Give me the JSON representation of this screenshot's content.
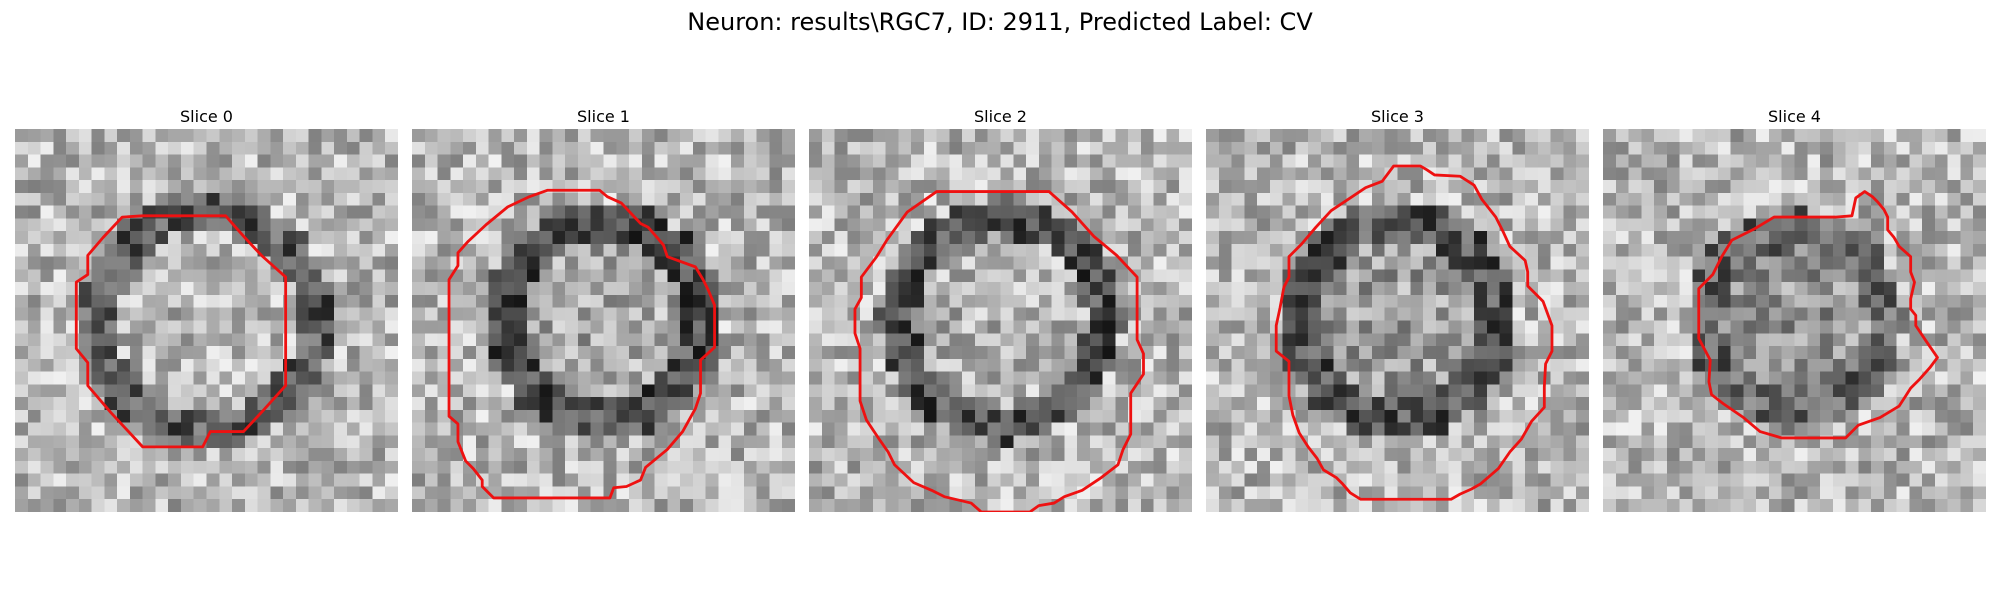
{
  "figure": {
    "title": "Neuron: results\\RGC7, ID: 2911, Predicted Label: CV",
    "outline_color": "#ee1111"
  },
  "slices": [
    {
      "label": "Slice 0",
      "seed": 11,
      "ring": 0.55,
      "center_shade": 0.72,
      "ring_shade": 0.35,
      "outline": [
        [
          10,
          6.8
        ],
        [
          16.5,
          6.8
        ],
        [
          17.2,
          7.6
        ],
        [
          18,
          8.5
        ],
        [
          19.3,
          9.9
        ],
        [
          21.2,
          11.6
        ],
        [
          21.2,
          20.1
        ],
        [
          19.3,
          22.2
        ],
        [
          17.9,
          23.7
        ],
        [
          15.3,
          23.7
        ],
        [
          14.7,
          24.9
        ],
        [
          10,
          24.9
        ],
        [
          7.5,
          22.2
        ],
        [
          5.7,
          20.1
        ],
        [
          5.7,
          18.3
        ],
        [
          4.8,
          17.2
        ],
        [
          4.8,
          12
        ],
        [
          5.7,
          11.4
        ],
        [
          5.7,
          9.9
        ],
        [
          6.9,
          8.5
        ],
        [
          8.4,
          6.9
        ]
      ]
    },
    {
      "label": "Slice 1",
      "seed": 23,
      "ring": 0.5,
      "center_shade": 0.66,
      "ring_shade": 0.3,
      "outline": [
        [
          10.6,
          4.8
        ],
        [
          14.7,
          4.8
        ],
        [
          15.3,
          5.3
        ],
        [
          16.4,
          5.8
        ],
        [
          17.9,
          7.4
        ],
        [
          18.5,
          7.7
        ],
        [
          19.2,
          8.5
        ],
        [
          19.7,
          9.1
        ],
        [
          20,
          10
        ],
        [
          22.2,
          10.8
        ],
        [
          22.8,
          11.8
        ],
        [
          23.2,
          12.6
        ],
        [
          23.7,
          13.8
        ],
        [
          23.7,
          17.1
        ],
        [
          22.6,
          18.1
        ],
        [
          22.6,
          20.7
        ],
        [
          22.2,
          21.9
        ],
        [
          21.2,
          23.7
        ],
        [
          20,
          25.1
        ],
        [
          18.3,
          26.5
        ],
        [
          17.9,
          27.5
        ],
        [
          16.8,
          28
        ],
        [
          15.8,
          28.1
        ],
        [
          15.5,
          28.9
        ],
        [
          13.8,
          28.9
        ],
        [
          12,
          28.9
        ],
        [
          6.4,
          28.9
        ],
        [
          5.5,
          28
        ],
        [
          5.5,
          27.5
        ],
        [
          4.8,
          26.6
        ],
        [
          4.2,
          26
        ],
        [
          3.6,
          24.5
        ],
        [
          3.6,
          23.1
        ],
        [
          2.9,
          22.5
        ],
        [
          2.9,
          11.8
        ],
        [
          3.6,
          10.7
        ],
        [
          3.6,
          9.7
        ],
        [
          4.4,
          8.8
        ],
        [
          5.8,
          7.5
        ],
        [
          7.5,
          6.1
        ],
        [
          9.2,
          5.3
        ]
      ]
    },
    {
      "label": "Slice 2",
      "seed": 37,
      "ring": 0.52,
      "center_shade": 0.7,
      "ring_shade": 0.3,
      "outline": [
        [
          10,
          4.9
        ],
        [
          18.8,
          4.9
        ],
        [
          20.6,
          6.5
        ],
        [
          22.3,
          8.4
        ],
        [
          24.1,
          9.9
        ],
        [
          25.7,
          11.6
        ],
        [
          25.7,
          16.5
        ],
        [
          26.2,
          17.6
        ],
        [
          26.2,
          19.2
        ],
        [
          25.2,
          20.7
        ],
        [
          25.2,
          23.9
        ],
        [
          24.6,
          25.1
        ],
        [
          24.2,
          26.3
        ],
        [
          22.9,
          27.3
        ],
        [
          21.4,
          28.3
        ],
        [
          20,
          28.8
        ],
        [
          19.2,
          29.3
        ],
        [
          18,
          29.5
        ],
        [
          17.3,
          30
        ],
        [
          13.5,
          30
        ],
        [
          12.7,
          29.3
        ],
        [
          10.6,
          28.8
        ],
        [
          9.6,
          28.3
        ],
        [
          8.2,
          27.7
        ],
        [
          6.7,
          26.3
        ],
        [
          6.2,
          25.3
        ],
        [
          5.5,
          24.3
        ],
        [
          4.5,
          22.8
        ],
        [
          4,
          21.3
        ],
        [
          4,
          17.2
        ],
        [
          3.6,
          16
        ],
        [
          3.6,
          14.1
        ],
        [
          4.1,
          13.2
        ],
        [
          4.1,
          11.6
        ],
        [
          5.3,
          10
        ],
        [
          6.1,
          8.7
        ],
        [
          7.7,
          6.5
        ]
      ]
    },
    {
      "label": "Slice 3",
      "seed": 53,
      "ring": 0.5,
      "center_shade": 0.62,
      "ring_shade": 0.32,
      "outline": [
        [
          14.7,
          2.9
        ],
        [
          16.8,
          2.9
        ],
        [
          17.3,
          3.2
        ],
        [
          17.9,
          3.6
        ],
        [
          19.9,
          3.7
        ],
        [
          21,
          4.4
        ],
        [
          21.6,
          5.5
        ],
        [
          22.7,
          6.9
        ],
        [
          23.3,
          8.1
        ],
        [
          23.8,
          9.2
        ],
        [
          25,
          10.3
        ],
        [
          25.2,
          11.2
        ],
        [
          25.2,
          12.3
        ],
        [
          26.4,
          13.5
        ],
        [
          27.1,
          15.4
        ],
        [
          27.1,
          16.3
        ],
        [
          27.1,
          17.4
        ],
        [
          26.6,
          18.4
        ],
        [
          26.5,
          20.2
        ],
        [
          26.5,
          21.8
        ],
        [
          25.5,
          22.9
        ],
        [
          24.7,
          24.3
        ],
        [
          23.8,
          25.3
        ],
        [
          22.9,
          26.6
        ],
        [
          21.5,
          27.8
        ],
        [
          20.8,
          28.2
        ],
        [
          19.9,
          28.6
        ],
        [
          19.2,
          29
        ],
        [
          12.1,
          29
        ],
        [
          11.3,
          28.5
        ],
        [
          10.7,
          27.8
        ],
        [
          10.2,
          27.3
        ],
        [
          9.2,
          26.7
        ],
        [
          8.7,
          25.8
        ],
        [
          8,
          24.9
        ],
        [
          7.3,
          23.8
        ],
        [
          6.8,
          22.4
        ],
        [
          6.5,
          20.9
        ],
        [
          6.5,
          18.2
        ],
        [
          5.5,
          17.4
        ],
        [
          5.5,
          15.4
        ],
        [
          5.8,
          14
        ],
        [
          6.1,
          12.4
        ],
        [
          6.5,
          11.6
        ],
        [
          6.5,
          10
        ],
        [
          7.5,
          9
        ],
        [
          8.6,
          7.7
        ],
        [
          9.8,
          6.4
        ],
        [
          11.3,
          5.4
        ],
        [
          12.5,
          4.6
        ],
        [
          13.8,
          4.1
        ]
      ]
    },
    {
      "label": "Slice 4",
      "seed": 71,
      "ring": 0.45,
      "center_shade": 0.58,
      "ring_shade": 0.4,
      "outline": [
        [
          18.2,
          6.9
        ],
        [
          19.5,
          6.8
        ],
        [
          19.8,
          5.4
        ],
        [
          20.5,
          4.9
        ],
        [
          21.1,
          5.3
        ],
        [
          21.5,
          5.7
        ],
        [
          22,
          6.3
        ],
        [
          22.3,
          6.9
        ],
        [
          22.3,
          7.9
        ],
        [
          22.8,
          8.5
        ],
        [
          23.2,
          9.2
        ],
        [
          24.1,
          10
        ],
        [
          24.1,
          11.2
        ],
        [
          24.4,
          12
        ],
        [
          24.1,
          13.3
        ],
        [
          24.1,
          14.1
        ],
        [
          24.5,
          14.6
        ],
        [
          24.5,
          15.4
        ],
        [
          25.3,
          16.6
        ],
        [
          26.2,
          17.9
        ],
        [
          25.6,
          18.7
        ],
        [
          24.8,
          19.6
        ],
        [
          24.1,
          20.3
        ],
        [
          23.2,
          21.7
        ],
        [
          21.7,
          22.6
        ],
        [
          20,
          23.2
        ],
        [
          19,
          24.2
        ],
        [
          17.3,
          24.2
        ],
        [
          14,
          24.2
        ],
        [
          12.3,
          23.7
        ],
        [
          11,
          22.6
        ],
        [
          9.4,
          21.5
        ],
        [
          8.5,
          20.8
        ],
        [
          8.3,
          19.8
        ],
        [
          8.4,
          18.1
        ],
        [
          7.5,
          16.4
        ],
        [
          7.5,
          12.5
        ],
        [
          8.6,
          11.4
        ],
        [
          9.3,
          10
        ],
        [
          10.1,
          8.7
        ],
        [
          11.9,
          7.8
        ],
        [
          13.4,
          6.9
        ]
      ]
    }
  ]
}
